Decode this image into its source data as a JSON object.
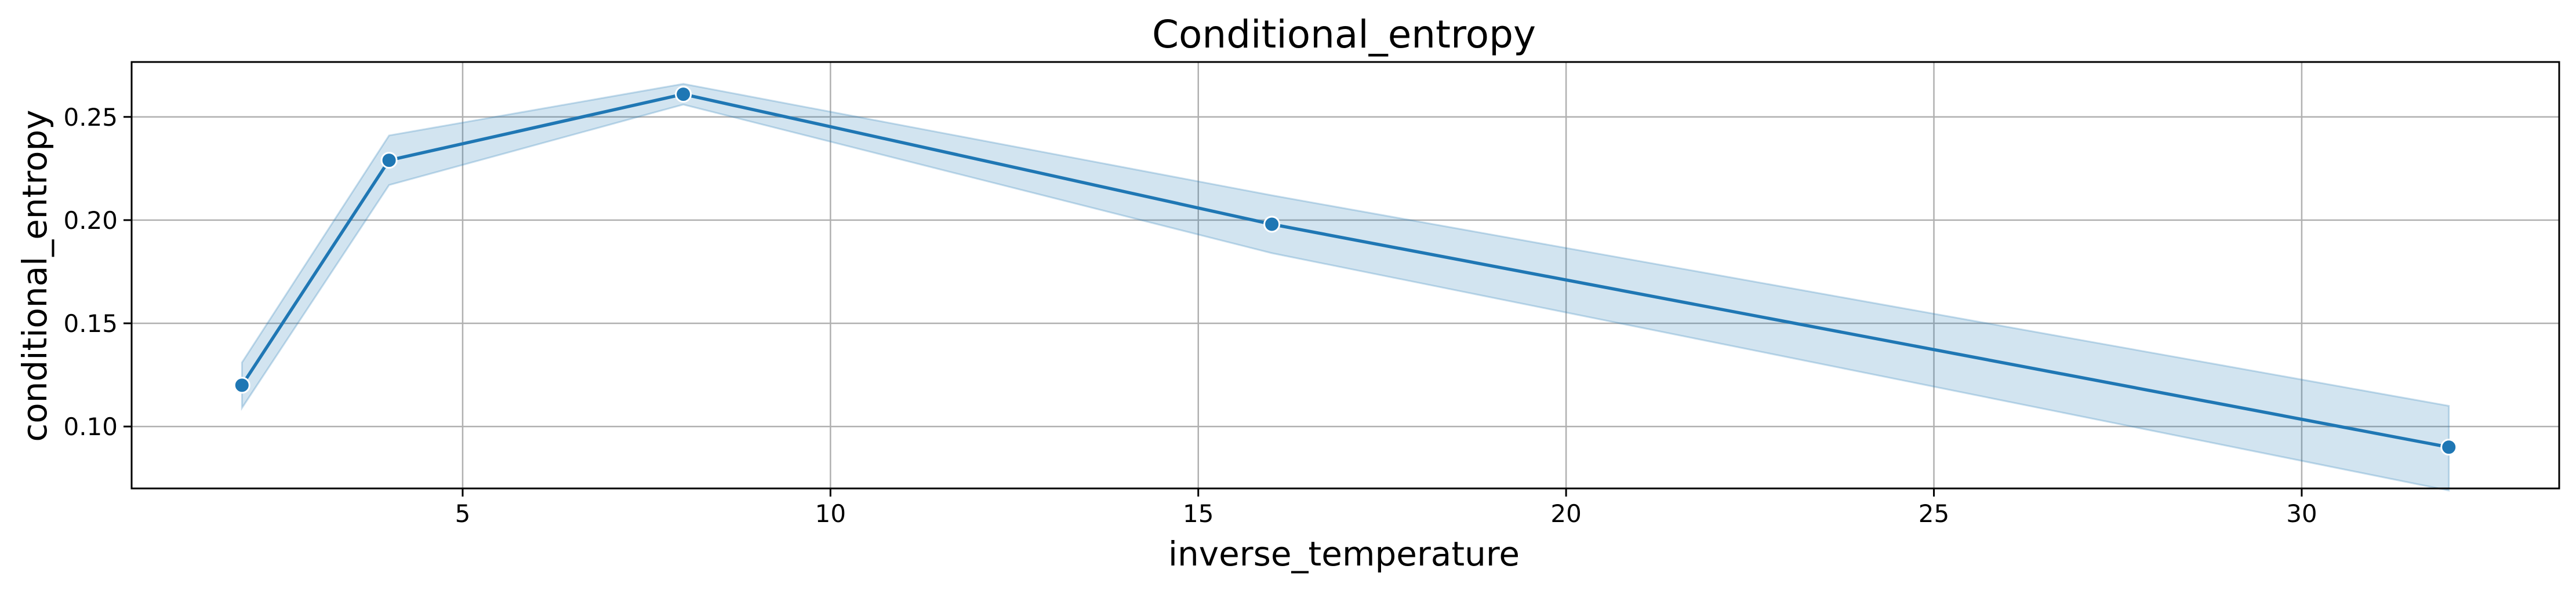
{
  "chart_data": {
    "type": "line",
    "title": "Conditional_entropy",
    "xlabel": "inverse_temperature",
    "ylabel": "conditional_entropy",
    "xlim": [
      0.5,
      33.5
    ],
    "ylim": [
      0.07,
      0.2766
    ],
    "xticks": [
      5,
      10,
      15,
      20,
      25,
      30
    ],
    "yticks": [
      0.1,
      0.15,
      0.2,
      0.25
    ],
    "grid": true,
    "series": [
      {
        "x": [
          2,
          4,
          8,
          16,
          32
        ],
        "y": [
          0.12,
          0.229,
          0.261,
          0.198,
          0.09
        ],
        "ci_lower": [
          0.109,
          0.217,
          0.256,
          0.184,
          0.069
        ],
        "ci_upper": [
          0.131,
          0.241,
          0.266,
          0.212,
          0.11
        ]
      }
    ],
    "colors": {
      "line": "#1f77b4",
      "band": "#1f77b4",
      "grid": "#b0b0b0",
      "axes": "#000000"
    }
  }
}
